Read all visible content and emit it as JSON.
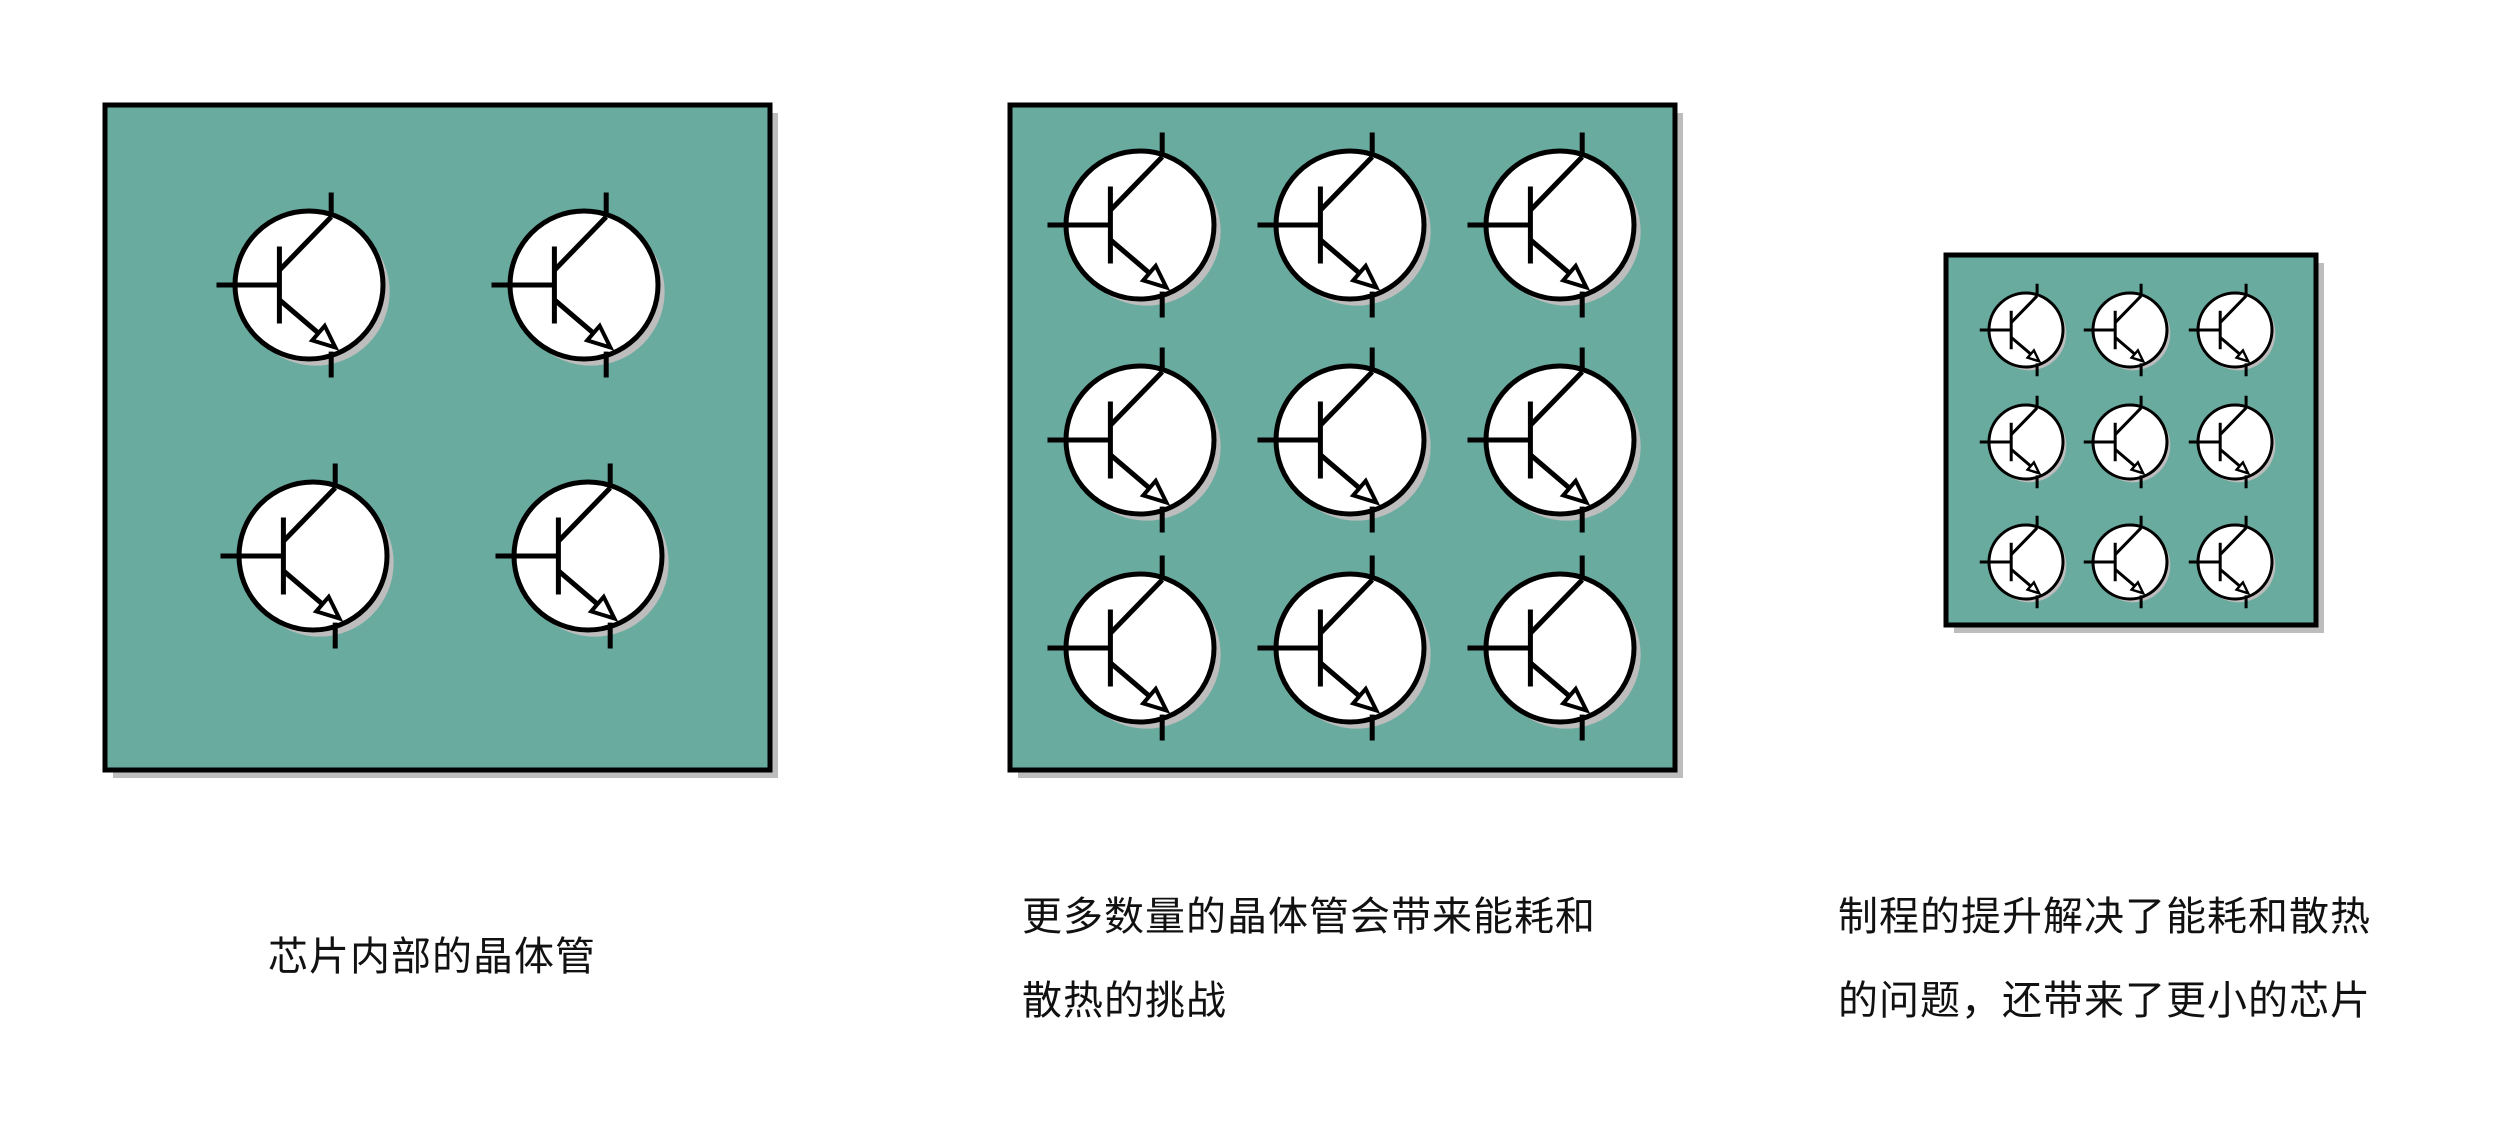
{
  "colors": {
    "chip_fill": "#69ab9f",
    "chip_stroke": "#000000",
    "shadow": "#bdbdbd",
    "transistor_fill": "#ffffff",
    "ink": "#000000"
  },
  "panels": [
    {
      "id": "panel-1",
      "rows": 2,
      "cols": 2,
      "caption": [
        "芯片内部的晶体管"
      ]
    },
    {
      "id": "panel-2",
      "rows": 3,
      "cols": 3,
      "caption": [
        "更多数量的晶体管会带来能耗和",
        "散热的挑战"
      ]
    },
    {
      "id": "panel-3",
      "rows": 3,
      "cols": 3,
      "caption": [
        "制程的提升解决了能耗和散热",
        "的问题，还带来了更小的芯片"
      ]
    }
  ],
  "icons": {
    "transistor": "npn-transistor-icon"
  }
}
